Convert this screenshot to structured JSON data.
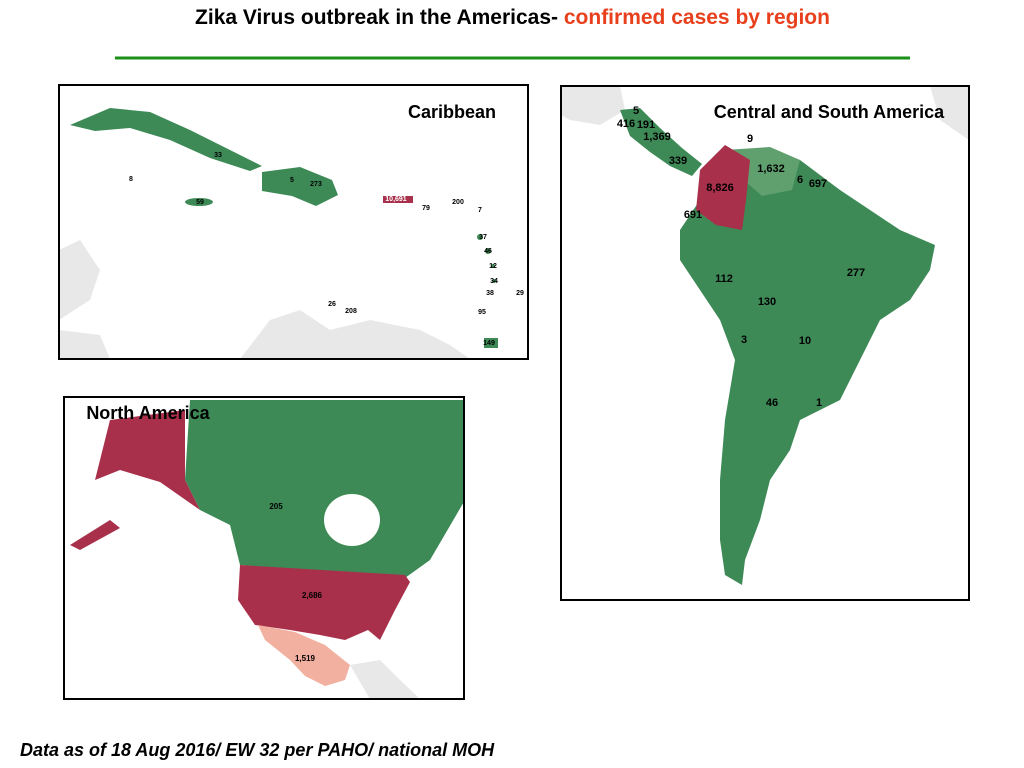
{
  "title": {
    "main": "Zika Virus outbreak in the Americas-",
    "highlight": "confirmed cases by region"
  },
  "panels": [
    {
      "title": "Caribbean",
      "labels": [
        "33",
        "8",
        "59",
        "5",
        "273",
        "10,691",
        "79",
        "200",
        "7",
        "37",
        "46",
        "12",
        "34",
        "38",
        "29",
        "26",
        "208",
        "95",
        "149"
      ]
    },
    {
      "title": "Central and South America",
      "labels": [
        "5",
        "416",
        "191",
        "1,369",
        "9",
        "339",
        "1,632",
        "6",
        "697",
        "8,826",
        "691",
        "112",
        "277",
        "130",
        "3",
        "10",
        "46",
        "1"
      ]
    },
    {
      "title": "North America",
      "labels": [
        "205",
        "2,686",
        "1,519"
      ]
    }
  ],
  "footer": "Data as of 18 Aug 2016/ EW 32 per PAHO/ national MOH"
}
